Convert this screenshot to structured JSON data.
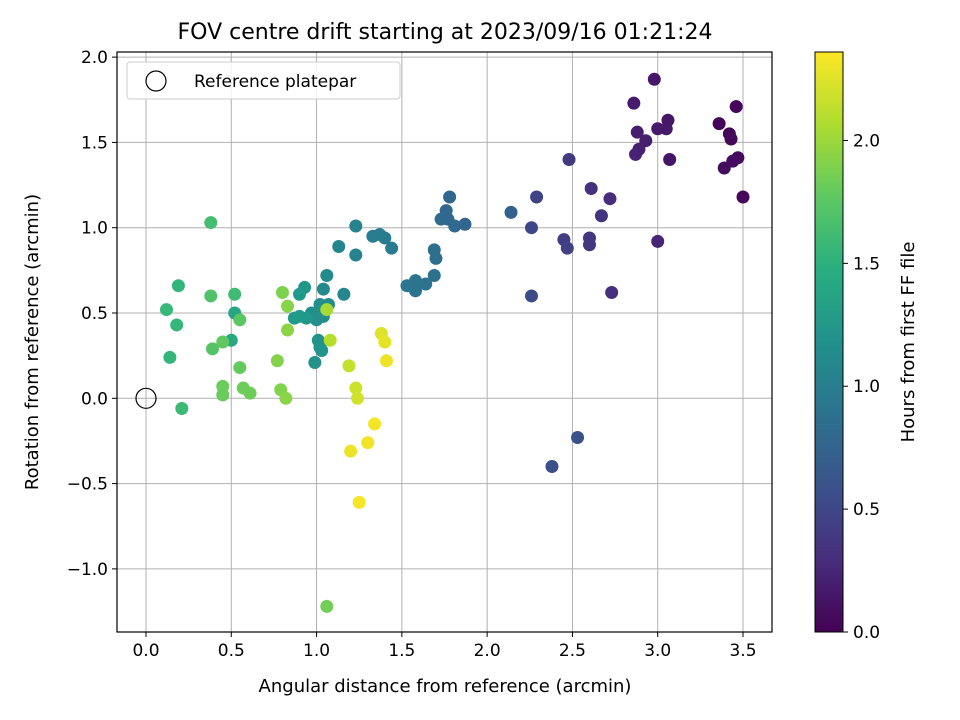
{
  "chart_data": {
    "type": "scatter",
    "title": "FOV centre drift starting at 2023/09/16 01:21:24",
    "xlabel": "Angular distance from reference (arcmin)",
    "ylabel": "Rotation from reference (arcmin)",
    "xlim": [
      -0.17,
      3.67
    ],
    "ylim": [
      -1.37,
      2.03
    ],
    "xticks": [
      0.0,
      0.5,
      1.0,
      1.5,
      2.0,
      2.5,
      3.0,
      3.5
    ],
    "xtick_labels": [
      "0.0",
      "0.5",
      "1.0",
      "1.5",
      "2.0",
      "2.5",
      "3.0",
      "3.5"
    ],
    "yticks": [
      -1.0,
      -0.5,
      0.0,
      0.5,
      1.0,
      1.5,
      2.0
    ],
    "ytick_labels": [
      "−1.0",
      "−0.5",
      "0.0",
      "0.5",
      "1.0",
      "1.5",
      "2.0"
    ],
    "grid": true,
    "legend": {
      "position": "upper-left",
      "entries": [
        {
          "label": "Reference platepar",
          "marker": "open-circle"
        }
      ]
    },
    "reference_point": {
      "x": 0.0,
      "y": 0.0
    },
    "colorbar": {
      "label": "Hours from first FF file",
      "colormap": "viridis",
      "range": [
        0.0,
        2.36
      ],
      "ticks": [
        0.0,
        0.5,
        1.0,
        1.5,
        2.0
      ],
      "tick_labels": [
        "0.0",
        "0.5",
        "1.0",
        "1.5",
        "2.0"
      ]
    },
    "points": [
      {
        "x": 3.36,
        "y": 1.61,
        "c": 0.02
      },
      {
        "x": 3.42,
        "y": 1.55,
        "c": 0.03
      },
      {
        "x": 3.43,
        "y": 1.52,
        "c": 0.05
      },
      {
        "x": 3.46,
        "y": 1.71,
        "c": 0.04
      },
      {
        "x": 3.47,
        "y": 1.41,
        "c": 0.06
      },
      {
        "x": 3.44,
        "y": 1.39,
        "c": 0.07
      },
      {
        "x": 3.39,
        "y": 1.35,
        "c": 0.08
      },
      {
        "x": 3.5,
        "y": 1.18,
        "c": 0.05
      },
      {
        "x": 2.98,
        "y": 1.87,
        "c": 0.15
      },
      {
        "x": 2.86,
        "y": 1.73,
        "c": 0.18
      },
      {
        "x": 3.06,
        "y": 1.63,
        "c": 0.14
      },
      {
        "x": 2.88,
        "y": 1.56,
        "c": 0.19
      },
      {
        "x": 3.0,
        "y": 1.58,
        "c": 0.17
      },
      {
        "x": 3.05,
        "y": 1.58,
        "c": 0.16
      },
      {
        "x": 2.93,
        "y": 1.51,
        "c": 0.2
      },
      {
        "x": 2.89,
        "y": 1.46,
        "c": 0.21
      },
      {
        "x": 2.87,
        "y": 1.43,
        "c": 0.22
      },
      {
        "x": 3.07,
        "y": 1.4,
        "c": 0.13
      },
      {
        "x": 3.0,
        "y": 0.92,
        "c": 0.24
      },
      {
        "x": 2.48,
        "y": 1.4,
        "c": 0.4
      },
      {
        "x": 2.61,
        "y": 1.23,
        "c": 0.33
      },
      {
        "x": 2.72,
        "y": 1.17,
        "c": 0.3
      },
      {
        "x": 2.67,
        "y": 1.07,
        "c": 0.36
      },
      {
        "x": 2.29,
        "y": 1.18,
        "c": 0.48
      },
      {
        "x": 2.45,
        "y": 0.93,
        "c": 0.43
      },
      {
        "x": 2.26,
        "y": 1.0,
        "c": 0.5
      },
      {
        "x": 2.47,
        "y": 0.88,
        "c": 0.45
      },
      {
        "x": 2.6,
        "y": 0.94,
        "c": 0.38
      },
      {
        "x": 2.6,
        "y": 0.9,
        "c": 0.39
      },
      {
        "x": 2.73,
        "y": 0.62,
        "c": 0.32
      },
      {
        "x": 2.26,
        "y": 0.6,
        "c": 0.55
      },
      {
        "x": 2.53,
        "y": -0.23,
        "c": 0.6
      },
      {
        "x": 2.38,
        "y": -0.4,
        "c": 0.58
      },
      {
        "x": 2.14,
        "y": 1.09,
        "c": 0.72
      },
      {
        "x": 1.78,
        "y": 1.18,
        "c": 0.78
      },
      {
        "x": 1.76,
        "y": 1.1,
        "c": 0.8
      },
      {
        "x": 1.73,
        "y": 1.05,
        "c": 0.82
      },
      {
        "x": 1.77,
        "y": 1.05,
        "c": 0.79
      },
      {
        "x": 1.81,
        "y": 1.01,
        "c": 0.81
      },
      {
        "x": 1.87,
        "y": 1.02,
        "c": 0.77
      },
      {
        "x": 1.69,
        "y": 0.87,
        "c": 0.85
      },
      {
        "x": 1.7,
        "y": 0.82,
        "c": 0.86
      },
      {
        "x": 1.69,
        "y": 0.72,
        "c": 0.88
      },
      {
        "x": 1.64,
        "y": 0.67,
        "c": 0.9
      },
      {
        "x": 1.58,
        "y": 0.69,
        "c": 0.92
      },
      {
        "x": 1.53,
        "y": 0.66,
        "c": 0.93
      },
      {
        "x": 1.58,
        "y": 0.63,
        "c": 0.91
      },
      {
        "x": 1.44,
        "y": 0.88,
        "c": 0.98
      },
      {
        "x": 1.4,
        "y": 0.94,
        "c": 0.97
      },
      {
        "x": 1.37,
        "y": 0.96,
        "c": 0.99
      },
      {
        "x": 1.33,
        "y": 0.95,
        "c": 1.0
      },
      {
        "x": 1.23,
        "y": 1.01,
        "c": 1.05
      },
      {
        "x": 1.13,
        "y": 0.89,
        "c": 1.08
      },
      {
        "x": 1.23,
        "y": 0.84,
        "c": 1.06
      },
      {
        "x": 1.06,
        "y": 0.72,
        "c": 1.12
      },
      {
        "x": 1.04,
        "y": 0.64,
        "c": 1.13
      },
      {
        "x": 1.16,
        "y": 0.61,
        "c": 1.1
      },
      {
        "x": 1.07,
        "y": 0.55,
        "c": 1.15
      },
      {
        "x": 1.02,
        "y": 0.55,
        "c": 1.16
      },
      {
        "x": 1.04,
        "y": 0.48,
        "c": 1.14
      },
      {
        "x": 1.0,
        "y": 0.46,
        "c": 1.18
      },
      {
        "x": 0.97,
        "y": 0.5,
        "c": 1.17
      },
      {
        "x": 1.02,
        "y": 0.51,
        "c": 1.19
      },
      {
        "x": 1.01,
        "y": 0.34,
        "c": 1.2
      },
      {
        "x": 1.02,
        "y": 0.3,
        "c": 1.21
      },
      {
        "x": 1.03,
        "y": 0.28,
        "c": 1.22
      },
      {
        "x": 0.99,
        "y": 0.21,
        "c": 1.2
      },
      {
        "x": 0.93,
        "y": 0.65,
        "c": 1.25
      },
      {
        "x": 0.9,
        "y": 0.61,
        "c": 1.27
      },
      {
        "x": 0.87,
        "y": 0.47,
        "c": 1.29
      },
      {
        "x": 0.9,
        "y": 0.48,
        "c": 1.28
      },
      {
        "x": 0.94,
        "y": 0.47,
        "c": 1.26
      },
      {
        "x": 0.52,
        "y": 0.5,
        "c": 1.4
      },
      {
        "x": 0.5,
        "y": 0.34,
        "c": 1.42
      },
      {
        "x": 0.19,
        "y": 0.66,
        "c": 1.55
      },
      {
        "x": 0.12,
        "y": 0.52,
        "c": 1.58
      },
      {
        "x": 0.18,
        "y": 0.43,
        "c": 1.57
      },
      {
        "x": 0.14,
        "y": 0.24,
        "c": 1.56
      },
      {
        "x": 0.21,
        "y": -0.06,
        "c": 1.6
      },
      {
        "x": 0.38,
        "y": 1.03,
        "c": 1.65
      },
      {
        "x": 0.52,
        "y": 0.61,
        "c": 1.62
      },
      {
        "x": 0.38,
        "y": 0.6,
        "c": 1.7
      },
      {
        "x": 0.55,
        "y": 0.46,
        "c": 1.75
      },
      {
        "x": 0.45,
        "y": 0.33,
        "c": 1.78
      },
      {
        "x": 0.39,
        "y": 0.29,
        "c": 1.72
      },
      {
        "x": 0.55,
        "y": 0.18,
        "c": 1.8
      },
      {
        "x": 0.45,
        "y": 0.07,
        "c": 1.82
      },
      {
        "x": 0.57,
        "y": 0.06,
        "c": 1.83
      },
      {
        "x": 0.45,
        "y": 0.02,
        "c": 1.81
      },
      {
        "x": 0.61,
        "y": 0.03,
        "c": 1.84
      },
      {
        "x": 0.8,
        "y": 0.62,
        "c": 1.9
      },
      {
        "x": 0.83,
        "y": 0.54,
        "c": 1.93
      },
      {
        "x": 0.83,
        "y": 0.4,
        "c": 1.95
      },
      {
        "x": 0.77,
        "y": 0.22,
        "c": 1.92
      },
      {
        "x": 0.79,
        "y": 0.05,
        "c": 1.91
      },
      {
        "x": 0.82,
        "y": 0.0,
        "c": 1.94
      },
      {
        "x": 1.06,
        "y": -1.22,
        "c": 1.85
      },
      {
        "x": 1.06,
        "y": 0.52,
        "c": 2.05
      },
      {
        "x": 1.08,
        "y": 0.34,
        "c": 2.1
      },
      {
        "x": 1.19,
        "y": 0.19,
        "c": 2.15
      },
      {
        "x": 1.23,
        "y": 0.06,
        "c": 2.18
      },
      {
        "x": 1.24,
        "y": 0.0,
        "c": 2.2
      },
      {
        "x": 1.38,
        "y": 0.38,
        "c": 2.25
      },
      {
        "x": 1.4,
        "y": 0.33,
        "c": 2.27
      },
      {
        "x": 1.41,
        "y": 0.22,
        "c": 2.3
      },
      {
        "x": 1.34,
        "y": -0.15,
        "c": 2.32
      },
      {
        "x": 1.3,
        "y": -0.26,
        "c": 2.31
      },
      {
        "x": 1.2,
        "y": -0.31,
        "c": 2.3
      },
      {
        "x": 1.25,
        "y": -0.61,
        "c": 2.33
      }
    ]
  }
}
